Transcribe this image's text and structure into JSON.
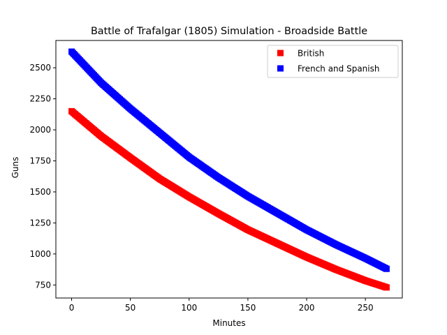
{
  "chart_data": {
    "type": "scatter",
    "title": "Battle of Trafalgar (1805) Simulation - Broadside Battle",
    "xlabel": "Minutes",
    "ylabel": "Guns",
    "xlim": [
      -13.4,
      281.4
    ],
    "ylim": [
      645,
      2720
    ],
    "x_ticks": [
      0,
      50,
      100,
      150,
      200,
      250
    ],
    "x_tick_labels": [
      "0",
      "50",
      "100",
      "150",
      "200",
      "250"
    ],
    "y_ticks": [
      750,
      1000,
      1250,
      1500,
      1750,
      2000,
      2250,
      2500
    ],
    "y_tick_labels": [
      "750",
      "1000",
      "1250",
      "1500",
      "1750",
      "2000",
      "2250",
      "2500"
    ],
    "grid": false,
    "legend_position": "upper right",
    "marker": "square",
    "x_range": [
      0,
      268
    ],
    "sample_step": 1,
    "series": [
      {
        "name": "British",
        "color": "#ff0000",
        "x": [
          0,
          25,
          50,
          75,
          100,
          125,
          150,
          175,
          200,
          225,
          250,
          268
        ],
        "y": [
          2150,
          1950,
          1775,
          1605,
          1460,
          1325,
          1195,
          1085,
          975,
          875,
          785,
          730
        ]
      },
      {
        "name": "French and Spanish",
        "color": "#0000ff",
        "x": [
          0,
          25,
          50,
          75,
          100,
          125,
          150,
          175,
          200,
          225,
          250,
          268
        ],
        "y": [
          2630,
          2380,
          2170,
          1975,
          1780,
          1615,
          1465,
          1330,
          1195,
          1075,
          965,
          880
        ]
      }
    ]
  }
}
